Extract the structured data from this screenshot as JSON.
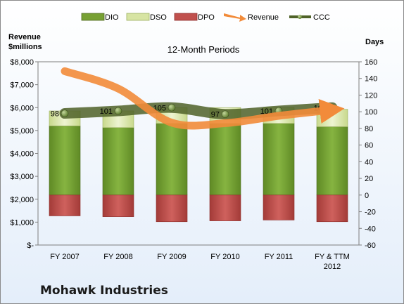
{
  "chart_data": {
    "type": "bar",
    "title": "12-Month Periods",
    "company": "Mohawk Industries",
    "y_left_label_line1": "Revenue",
    "y_left_label_line2": "$millions",
    "y_right_label": "Days",
    "categories": [
      "FY 2007",
      "FY 2008",
      "FY 2009",
      "FY 2010",
      "FY 2011",
      "FY & TTM 2012"
    ],
    "y_left_ticks": [
      "$-",
      "$1,000",
      "$2,000",
      "$3,000",
      "$4,000",
      "$5,000",
      "$6,000",
      "$7,000",
      "$8,000"
    ],
    "y_left_range": [
      0,
      8000
    ],
    "y_right_range": [
      -60,
      160
    ],
    "y_right_ticks": [
      -60,
      -40,
      -20,
      0,
      20,
      40,
      60,
      80,
      100,
      120,
      140,
      160
    ],
    "grid": false,
    "legend_position": "top",
    "series": [
      {
        "name": "DIO",
        "axis": "right",
        "kind": "stacked-bar",
        "color": "#77a033",
        "values": [
          83,
          81,
          86,
          86,
          86,
          82
        ]
      },
      {
        "name": "DSO",
        "axis": "right",
        "kind": "stacked-bar",
        "color": "#d7e4a3",
        "values": [
          18,
          20,
          19,
          19,
          19,
          21
        ]
      },
      {
        "name": "DPO",
        "axis": "right",
        "kind": "stacked-bar-negative",
        "color": "#c0504d",
        "values": [
          -25,
          -26,
          -32,
          -31,
          -30,
          -32
        ]
      },
      {
        "name": "Revenue",
        "axis": "left",
        "kind": "line",
        "color": "#f28b3a",
        "values": [
          7590,
          6830,
          5340,
          5320,
          5640,
          5900
        ]
      },
      {
        "name": "CCC",
        "axis": "right",
        "kind": "line",
        "color": "#4f6228",
        "values": [
          98,
          101,
          105,
          97,
          101,
          105
        ]
      }
    ],
    "ccc_labels": [
      "98",
      "101",
      "105",
      "97",
      "101",
      "105"
    ]
  }
}
